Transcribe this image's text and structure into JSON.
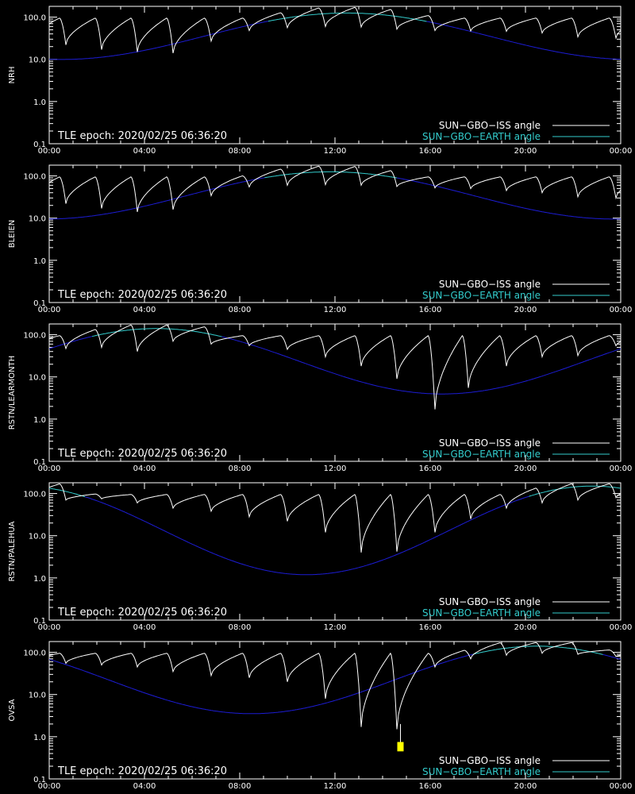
{
  "common": {
    "epoch_text": "TLE epoch: 2020/02/25 06:36:20",
    "legend": [
      {
        "label": "SUN−GBO−ISS angle",
        "color": "#ffffff"
      },
      {
        "label": "SUN−GBO−EARTH angle",
        "color": "#33cccc"
      }
    ],
    "x_tick_labels": [
      "00:00",
      "04:00",
      "08:00",
      "12:00",
      "16:00",
      "20:00",
      "00:00"
    ],
    "y_tick_labels": [
      "0.1",
      "1.0",
      "10.0",
      "100.0"
    ],
    "colors": {
      "background": "#000000",
      "axes": "#ffffff",
      "iss_angle": "#ffffff",
      "earth_angle_day": "#33cccc",
      "earth_angle_night": "#1c1cd4",
      "marker": "#ffff00"
    }
  },
  "chart_data": [
    {
      "type": "line",
      "ylabel": "NRH",
      "yscale": "log",
      "ylim": [
        0.1,
        180
      ],
      "xlim_hours": [
        0,
        24
      ],
      "earth": {
        "peak_hour": 12.5,
        "peak_value": 125,
        "amplitude": 1.1,
        "threshold": 80
      },
      "iss_minima": [
        [
          0.7,
          22
        ],
        [
          2.2,
          17
        ],
        [
          3.7,
          15
        ],
        [
          5.2,
          14
        ],
        [
          6.8,
          27
        ],
        [
          8.4,
          48
        ],
        [
          10.0,
          56
        ],
        [
          11.6,
          60
        ],
        [
          13.1,
          58
        ],
        [
          14.6,
          52
        ],
        [
          16.2,
          48
        ],
        [
          17.7,
          47
        ],
        [
          19.2,
          46
        ],
        [
          20.7,
          42
        ],
        [
          22.2,
          34
        ],
        [
          23.8,
          32
        ]
      ]
    },
    {
      "type": "line",
      "ylabel": "BLEIEN",
      "yscale": "log",
      "ylim": [
        0.1,
        180
      ],
      "xlim_hours": [
        0,
        24
      ],
      "earth": {
        "peak_hour": 11.8,
        "peak_value": 125,
        "amplitude": 1.12,
        "threshold": 90
      },
      "iss_minima": [
        [
          0.7,
          22
        ],
        [
          2.2,
          17
        ],
        [
          3.7,
          14
        ],
        [
          5.2,
          16
        ],
        [
          6.8,
          34
        ],
        [
          8.4,
          55
        ],
        [
          10.0,
          60
        ],
        [
          11.6,
          62
        ],
        [
          13.1,
          60
        ],
        [
          14.6,
          56
        ],
        [
          16.2,
          52
        ],
        [
          17.7,
          50
        ],
        [
          19.2,
          45
        ],
        [
          20.7,
          40
        ],
        [
          22.2,
          32
        ],
        [
          23.8,
          30
        ]
      ]
    },
    {
      "type": "line",
      "ylabel": "RSTN/LEARMONTH",
      "yscale": "log",
      "ylim": [
        0.1,
        180
      ],
      "xlim_hours": [
        0,
        24
      ],
      "earth": {
        "peak_hour": 4.5,
        "peak_value": 140,
        "amplitude": 1.55,
        "threshold": 90
      },
      "iss_minima": [
        [
          0.7,
          47
        ],
        [
          2.2,
          50
        ],
        [
          3.7,
          40
        ],
        [
          5.2,
          70
        ],
        [
          6.8,
          60
        ],
        [
          8.4,
          55
        ],
        [
          10.0,
          45
        ],
        [
          11.6,
          30
        ],
        [
          13.1,
          18
        ],
        [
          14.6,
          9
        ],
        [
          16.2,
          1.7
        ],
        [
          17.6,
          5.5
        ],
        [
          19.2,
          18
        ],
        [
          20.7,
          30
        ],
        [
          22.2,
          32
        ],
        [
          23.8,
          55
        ]
      ]
    },
    {
      "type": "line",
      "ylabel": "RSTN/PALEHUA",
      "yscale": "log",
      "ylim": [
        0.1,
        180
      ],
      "xlim_hours": [
        0,
        24
      ],
      "earth": {
        "peak_hour": 22.8,
        "peak_value": 150,
        "amplitude": 2.1,
        "threshold": 85
      },
      "iss_minima": [
        [
          0.7,
          70
        ],
        [
          2.2,
          75
        ],
        [
          3.7,
          60
        ],
        [
          5.2,
          45
        ],
        [
          6.8,
          38
        ],
        [
          8.4,
          28
        ],
        [
          10.0,
          22
        ],
        [
          11.6,
          12
        ],
        [
          13.1,
          4
        ],
        [
          14.6,
          4.2
        ],
        [
          16.2,
          12
        ],
        [
          17.7,
          25
        ],
        [
          19.2,
          45
        ],
        [
          20.7,
          60
        ],
        [
          22.2,
          70
        ],
        [
          23.8,
          80
        ]
      ]
    },
    {
      "type": "line",
      "ylabel": "OVSA",
      "yscale": "log",
      "ylim": [
        0.1,
        180
      ],
      "xlim_hours": [
        0,
        24
      ],
      "earth": {
        "peak_hour": 20.5,
        "peak_value": 140,
        "amplitude": 1.6,
        "threshold": 90
      },
      "iss_minima": [
        [
          0.7,
          55
        ],
        [
          2.2,
          50
        ],
        [
          3.7,
          45
        ],
        [
          5.2,
          35
        ],
        [
          6.8,
          28
        ],
        [
          8.4,
          25
        ],
        [
          10.0,
          20
        ],
        [
          11.6,
          8
        ],
        [
          13.1,
          1.7
        ],
        [
          14.6,
          1.5
        ],
        [
          16.2,
          45
        ],
        [
          17.7,
          70
        ],
        [
          19.2,
          85
        ],
        [
          20.7,
          95
        ],
        [
          22.2,
          90
        ],
        [
          23.8,
          80
        ]
      ],
      "marker": {
        "hour": 14.75,
        "y_from": 0.45,
        "y_to": 0.75
      }
    }
  ]
}
